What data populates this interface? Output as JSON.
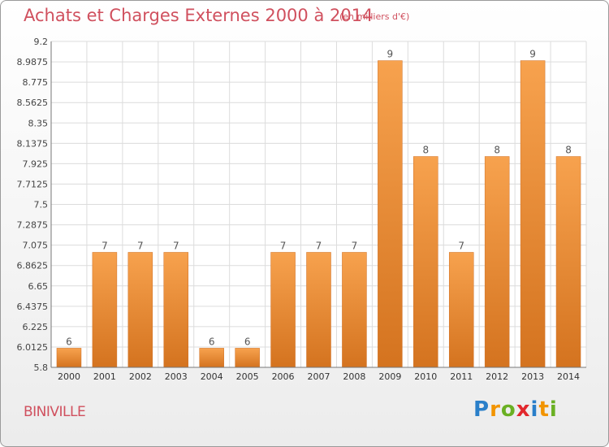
{
  "title": "Achats et Charges Externes 2000 à 2014",
  "subtitle": "(en milliers d'€)",
  "city": "BINIVILLE",
  "logo": {
    "letters": [
      "P",
      "r",
      "o",
      "x",
      "i",
      "t",
      "i"
    ],
    "colors": [
      "#2a7fc9",
      "#f29400",
      "#6ab023",
      "#e2282d",
      "#2a7fc9",
      "#f29400",
      "#6ab023"
    ]
  },
  "colors": {
    "bar": "#f0923a",
    "text": "#d0505e"
  },
  "chart_data": {
    "type": "bar",
    "categories": [
      "2000",
      "2001",
      "2002",
      "2003",
      "2004",
      "2005",
      "2006",
      "2007",
      "2008",
      "2009",
      "2010",
      "2011",
      "2012",
      "2013",
      "2014"
    ],
    "values": [
      6,
      7,
      7,
      7,
      6,
      6,
      7,
      7,
      7,
      9,
      8,
      7,
      8,
      9,
      8
    ],
    "data_labels": [
      "6",
      "7",
      "7",
      "7",
      "6",
      "6",
      "7",
      "7",
      "7",
      "9",
      "8",
      "7",
      "8",
      "9",
      "8"
    ],
    "yticks": [
      "5.8",
      "6.0125",
      "6.225",
      "6.4375",
      "6.65",
      "6.8625",
      "7.075",
      "7.2875",
      "7.5",
      "7.7125",
      "7.925",
      "8.1375",
      "8.35",
      "8.5625",
      "8.775",
      "8.9875",
      "9.2"
    ],
    "ylim": [
      5.8,
      9.2
    ],
    "grid": true,
    "xlabel": "",
    "ylabel": ""
  }
}
